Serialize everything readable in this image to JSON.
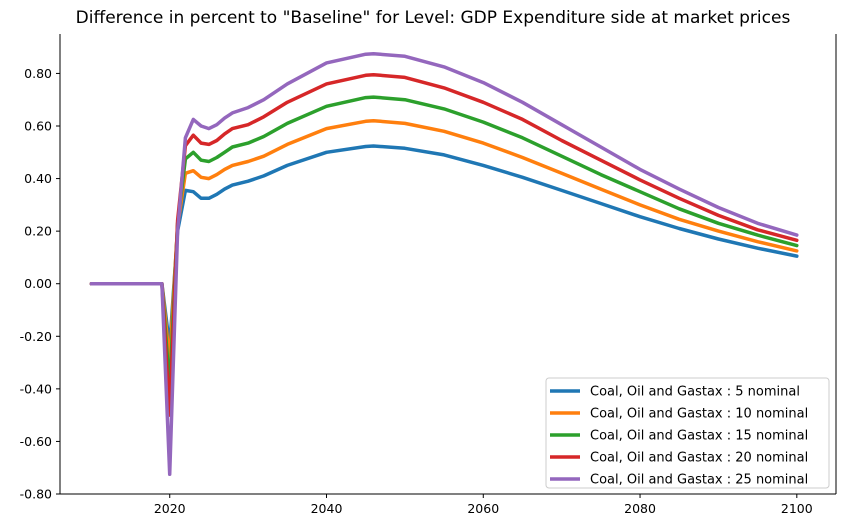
{
  "chart_data": {
    "type": "line",
    "title": "Difference in percent to \"Baseline\" for Level: GDP Expenditure side at market prices",
    "xlabel": "",
    "ylabel": "",
    "xlim": [
      2006,
      2105
    ],
    "ylim": [
      -0.8,
      0.95
    ],
    "grid": false,
    "legend_position": "lower-right",
    "x_ticks": [
      2020,
      2040,
      2060,
      2080,
      2100
    ],
    "y_ticks": [
      -0.8,
      -0.6,
      -0.4,
      -0.2,
      0.0,
      0.2,
      0.4,
      0.6,
      0.8
    ],
    "y_tick_labels": [
      "-0.80",
      "-0.60",
      "-0.40",
      "-0.20",
      "0.00",
      "0.20",
      "0.40",
      "0.60",
      "0.80"
    ],
    "x_tick_labels": [
      "2020",
      "2040",
      "2060",
      "2080",
      "2100"
    ],
    "series": [
      {
        "name": "Coal, Oil and Gastax : 5 nominal",
        "color": "#1f77b4",
        "points": [
          [
            2010,
            0
          ],
          [
            2019,
            0
          ],
          [
            2020,
            -0.24
          ],
          [
            2021,
            0.2
          ],
          [
            2022,
            0.355
          ],
          [
            2023,
            0.35
          ],
          [
            2024,
            0.325
          ],
          [
            2025,
            0.325
          ],
          [
            2026,
            0.34
          ],
          [
            2027,
            0.36
          ],
          [
            2028,
            0.375
          ],
          [
            2030,
            0.39
          ],
          [
            2032,
            0.41
          ],
          [
            2035,
            0.45
          ],
          [
            2040,
            0.5
          ],
          [
            2045,
            0.522
          ],
          [
            2046,
            0.524
          ],
          [
            2050,
            0.515
          ],
          [
            2055,
            0.49
          ],
          [
            2060,
            0.45
          ],
          [
            2065,
            0.405
          ],
          [
            2070,
            0.355
          ],
          [
            2075,
            0.305
          ],
          [
            2080,
            0.255
          ],
          [
            2085,
            0.21
          ],
          [
            2090,
            0.17
          ],
          [
            2095,
            0.135
          ],
          [
            2100,
            0.105
          ]
        ]
      },
      {
        "name": "Coal, Oil and Gastax : 10 nominal",
        "color": "#ff7f0e",
        "points": [
          [
            2010,
            0
          ],
          [
            2019,
            0
          ],
          [
            2020,
            -0.3
          ],
          [
            2021,
            0.22
          ],
          [
            2022,
            0.42
          ],
          [
            2023,
            0.43
          ],
          [
            2024,
            0.405
          ],
          [
            2025,
            0.4
          ],
          [
            2026,
            0.415
          ],
          [
            2027,
            0.435
          ],
          [
            2028,
            0.45
          ],
          [
            2030,
            0.465
          ],
          [
            2032,
            0.485
          ],
          [
            2035,
            0.53
          ],
          [
            2040,
            0.59
          ],
          [
            2045,
            0.618
          ],
          [
            2046,
            0.62
          ],
          [
            2050,
            0.61
          ],
          [
            2055,
            0.58
          ],
          [
            2060,
            0.535
          ],
          [
            2065,
            0.48
          ],
          [
            2070,
            0.42
          ],
          [
            2075,
            0.36
          ],
          [
            2080,
            0.3
          ],
          [
            2085,
            0.245
          ],
          [
            2090,
            0.2
          ],
          [
            2095,
            0.16
          ],
          [
            2100,
            0.125
          ]
        ]
      },
      {
        "name": "Coal, Oil and Gastax : 15 nominal",
        "color": "#2ca02c",
        "points": [
          [
            2010,
            0
          ],
          [
            2019,
            0
          ],
          [
            2020,
            -0.4
          ],
          [
            2021,
            0.23
          ],
          [
            2022,
            0.475
          ],
          [
            2023,
            0.5
          ],
          [
            2024,
            0.47
          ],
          [
            2025,
            0.465
          ],
          [
            2026,
            0.48
          ],
          [
            2027,
            0.5
          ],
          [
            2028,
            0.52
          ],
          [
            2030,
            0.535
          ],
          [
            2032,
            0.56
          ],
          [
            2035,
            0.61
          ],
          [
            2040,
            0.675
          ],
          [
            2045,
            0.708
          ],
          [
            2046,
            0.71
          ],
          [
            2050,
            0.7
          ],
          [
            2055,
            0.665
          ],
          [
            2060,
            0.615
          ],
          [
            2065,
            0.555
          ],
          [
            2070,
            0.485
          ],
          [
            2075,
            0.415
          ],
          [
            2080,
            0.35
          ],
          [
            2085,
            0.285
          ],
          [
            2090,
            0.23
          ],
          [
            2095,
            0.185
          ],
          [
            2100,
            0.145
          ]
        ]
      },
      {
        "name": "Coal, Oil and Gastax : 20 nominal",
        "color": "#d62728",
        "points": [
          [
            2010,
            0
          ],
          [
            2019,
            0
          ],
          [
            2020,
            -0.5
          ],
          [
            2021,
            0.24
          ],
          [
            2022,
            0.525
          ],
          [
            2023,
            0.565
          ],
          [
            2024,
            0.535
          ],
          [
            2025,
            0.53
          ],
          [
            2026,
            0.545
          ],
          [
            2027,
            0.57
          ],
          [
            2028,
            0.59
          ],
          [
            2030,
            0.605
          ],
          [
            2032,
            0.635
          ],
          [
            2035,
            0.69
          ],
          [
            2040,
            0.76
          ],
          [
            2045,
            0.793
          ],
          [
            2046,
            0.795
          ],
          [
            2050,
            0.785
          ],
          [
            2055,
            0.745
          ],
          [
            2060,
            0.69
          ],
          [
            2065,
            0.625
          ],
          [
            2070,
            0.545
          ],
          [
            2075,
            0.47
          ],
          [
            2080,
            0.395
          ],
          [
            2085,
            0.325
          ],
          [
            2090,
            0.26
          ],
          [
            2095,
            0.205
          ],
          [
            2100,
            0.165
          ]
        ]
      },
      {
        "name": "Coal, Oil and Gastax : 25 nominal",
        "color": "#9467bd",
        "points": [
          [
            2010,
            0
          ],
          [
            2019,
            0
          ],
          [
            2020,
            -0.725
          ],
          [
            2021,
            0.2
          ],
          [
            2022,
            0.555
          ],
          [
            2023,
            0.625
          ],
          [
            2024,
            0.6
          ],
          [
            2025,
            0.59
          ],
          [
            2026,
            0.605
          ],
          [
            2027,
            0.63
          ],
          [
            2028,
            0.65
          ],
          [
            2030,
            0.67
          ],
          [
            2032,
            0.7
          ],
          [
            2035,
            0.76
          ],
          [
            2040,
            0.84
          ],
          [
            2045,
            0.873
          ],
          [
            2046,
            0.875
          ],
          [
            2050,
            0.865
          ],
          [
            2055,
            0.825
          ],
          [
            2060,
            0.765
          ],
          [
            2065,
            0.69
          ],
          [
            2070,
            0.605
          ],
          [
            2075,
            0.52
          ],
          [
            2080,
            0.435
          ],
          [
            2085,
            0.36
          ],
          [
            2090,
            0.29
          ],
          [
            2095,
            0.23
          ],
          [
            2100,
            0.185
          ]
        ]
      }
    ]
  }
}
